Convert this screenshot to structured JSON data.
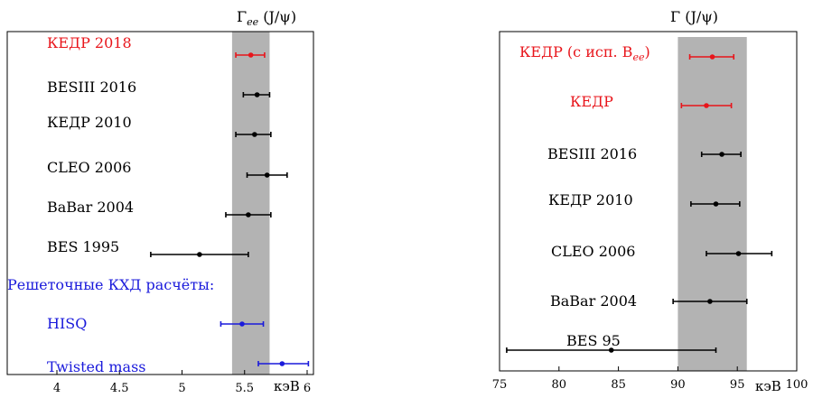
{
  "chart_data": [
    {
      "type": "scatter",
      "title": "Γ_ee (J/ψ)",
      "title_main": "Γ",
      "title_sub": "ee",
      "title_rest": " (J/ψ)",
      "unit_label": "кэВ",
      "xlim": [
        3.6,
        6.1
      ],
      "xticks": [
        4,
        4.5,
        5,
        5.5,
        6
      ],
      "xtick_labels": [
        "4",
        "4.5",
        "5",
        "5.5",
        "6"
      ],
      "band": {
        "lo": 5.4,
        "hi": 5.7,
        "color": "#b3b3b3"
      },
      "section_label": {
        "text": "Решеточные КХД расчёты:",
        "color": "#1a1adb"
      },
      "points": [
        {
          "label": "КЕДР 2018",
          "value": 5.55,
          "lo": 5.43,
          "hi": 5.66,
          "color": "#e8151b"
        },
        {
          "label": "BESIII 2016",
          "value": 5.6,
          "lo": 5.49,
          "hi": 5.7,
          "color": "#000000"
        },
        {
          "label": "КЕДР 2010",
          "value": 5.58,
          "lo": 5.43,
          "hi": 5.71,
          "color": "#000000"
        },
        {
          "label": "CLEO 2006",
          "value": 5.68,
          "lo": 5.52,
          "hi": 5.84,
          "color": "#000000"
        },
        {
          "label": "BaBar 2004",
          "value": 5.53,
          "lo": 5.35,
          "hi": 5.71,
          "color": "#000000"
        },
        {
          "label": "BES 1995",
          "value": 5.14,
          "lo": 4.75,
          "hi": 5.53,
          "color": "#000000"
        },
        {
          "label": "HISQ",
          "value": 5.48,
          "lo": 5.31,
          "hi": 5.65,
          "color": "#1a1adb"
        },
        {
          "label": "Twisted mass",
          "value": 5.8,
          "lo": 5.61,
          "hi": 6.01,
          "color": "#1a1adb"
        }
      ]
    },
    {
      "type": "scatter",
      "title": "Γ (J/ψ)",
      "title_main": "Γ",
      "title_sub": "",
      "title_rest": " (J/ψ)",
      "unit_label": "кэВ",
      "xlim": [
        75,
        100
      ],
      "xticks": [
        75,
        80,
        85,
        90,
        95,
        100
      ],
      "xtick_labels": [
        "75",
        "80",
        "85",
        "90",
        "95",
        "100"
      ],
      "band": {
        "lo": 90.0,
        "hi": 95.8,
        "color": "#b3b3b3"
      },
      "points": [
        {
          "label": "КЕДР (с исп. B_ee)",
          "label_main": "КЕДР (с исп. B",
          "label_sub": "ee",
          "label_tail": ")",
          "value": 92.9,
          "lo": 91.0,
          "hi": 94.7,
          "color": "#e8151b"
        },
        {
          "label": "КЕДР",
          "value": 92.4,
          "lo": 90.3,
          "hi": 94.5,
          "color": "#e8151b"
        },
        {
          "label": "BESIII 2016",
          "value": 93.7,
          "lo": 92.0,
          "hi": 95.3,
          "color": "#000000"
        },
        {
          "label": "КЕДР 2010",
          "value": 93.2,
          "lo": 91.1,
          "hi": 95.2,
          "color": "#000000"
        },
        {
          "label": "CLEO 2006",
          "value": 95.1,
          "lo": 92.4,
          "hi": 97.9,
          "color": "#000000"
        },
        {
          "label": "BaBar 2004",
          "value": 92.7,
          "lo": 89.6,
          "hi": 95.8,
          "color": "#000000"
        },
        {
          "label": "BES 95",
          "value": 84.4,
          "lo": 75.6,
          "hi": 93.2,
          "color": "#000000"
        }
      ]
    }
  ]
}
